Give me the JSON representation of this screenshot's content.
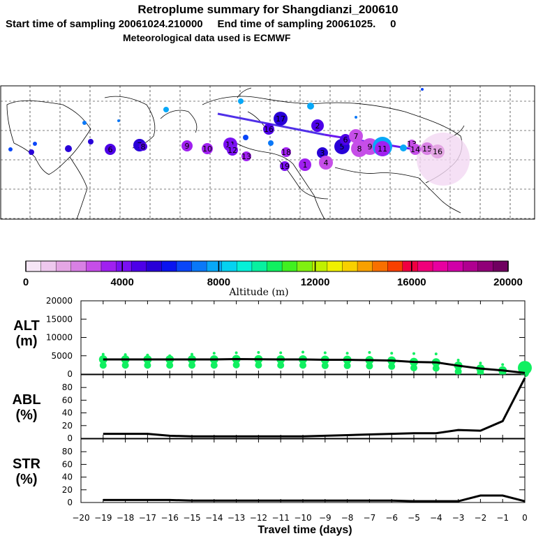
{
  "title": "Retroplume summary for Shangdianzi_200610",
  "subtitle": "Start time of sampling 20061024.210000     End time of sampling 20061025.     0",
  "met_data": "Meteorological data used is ECMWF",
  "colorbar": {
    "label": "Altitude (m)",
    "ticks": [
      "0",
      "4000",
      "8000",
      "12000",
      "16000",
      "20000"
    ],
    "colors": [
      "#f6e6f6",
      "#eec8ee",
      "#e4a6e4",
      "#d880e4",
      "#c64ee8",
      "#a020f0",
      "#7a10f2",
      "#4d00e8",
      "#2800d8",
      "#0a14f0",
      "#0a46f8",
      "#0a78f8",
      "#08a8f8",
      "#06d2f0",
      "#06f0d8",
      "#08f0a0",
      "#10f060",
      "#40f020",
      "#80f010",
      "#c0f000",
      "#f0f000",
      "#f8d000",
      "#f8a000",
      "#f87000",
      "#f84000",
      "#f00040",
      "#f0007a",
      "#e800a0",
      "#d000a8",
      "#b00090",
      "#900078",
      "#700060"
    ]
  },
  "map": {
    "plume_labels": [
      "1",
      "2",
      "3",
      "4",
      "5",
      "6",
      "7",
      "8",
      "9",
      "10",
      "11",
      "12",
      "13",
      "14",
      "15",
      "16",
      "17",
      "18",
      "19"
    ]
  },
  "chart_data": [
    {
      "type": "line",
      "name": "ALT",
      "ylabel": "ALT\n(m)",
      "ylim": [
        0,
        20000
      ],
      "yticks": [
        0,
        5000,
        10000,
        15000,
        20000
      ],
      "x": [
        -19,
        -18,
        -17,
        -16,
        -15,
        -14,
        -13,
        -12,
        -11,
        -10,
        -9,
        -8,
        -7,
        -6,
        -5,
        -4,
        -3,
        -2,
        -1,
        0
      ],
      "series": [
        {
          "name": "mean altitude",
          "values": [
            4000,
            4000,
            4000,
            4000,
            4000,
            4000,
            4100,
            4050,
            4000,
            4000,
            3900,
            3900,
            3800,
            3700,
            3300,
            3200,
            2300,
            1500,
            1000,
            300
          ]
        },
        {
          "name": "cluster altitudes (green)",
          "values": [
            4200,
            4100,
            4000,
            3800,
            4200,
            4500,
            4600,
            4700,
            4600,
            4800,
            4600,
            4500,
            4700,
            4500,
            4400,
            4300,
            2600,
            1800,
            1400,
            1700
          ]
        }
      ]
    },
    {
      "type": "line",
      "name": "ABL",
      "ylabel": "ABL\n(%)",
      "ylim": [
        0,
        100
      ],
      "yticks": [
        0,
        20,
        40,
        60,
        80
      ],
      "x": [
        -19,
        -18,
        -17,
        -16,
        -15,
        -14,
        -13,
        -12,
        -11,
        -10,
        -9,
        -8,
        -7,
        -6,
        -5,
        -4,
        -3,
        -2,
        -1,
        0
      ],
      "values": [
        7,
        7,
        7,
        4,
        3,
        3,
        3,
        3,
        3,
        3,
        4,
        5,
        6,
        7,
        8,
        8,
        13,
        12,
        27,
        95
      ]
    },
    {
      "type": "line",
      "name": "STR",
      "ylabel": "STR\n(%)",
      "ylim": [
        0,
        100
      ],
      "yticks": [
        0,
        20,
        40,
        60,
        80
      ],
      "xlabel": "Travel time (days)",
      "xticks": [
        -20,
        -19,
        -18,
        -17,
        -16,
        -15,
        -14,
        -13,
        -12,
        -11,
        -10,
        -9,
        -8,
        -7,
        -6,
        -5,
        -4,
        -3,
        -2,
        -1,
        0
      ],
      "xticklabels": [
        "−20",
        "−19",
        "−18",
        "−17",
        "−16",
        "−15",
        "−14",
        "−13",
        "−12",
        "−11",
        "−10",
        "−9",
        "−8",
        "−7",
        "−6",
        "−5",
        "−4",
        "−3",
        "−2",
        "−1",
        "0"
      ],
      "x": [
        -19,
        -18,
        -17,
        -16,
        -15,
        -14,
        -13,
        -12,
        -11,
        -10,
        -9,
        -8,
        -7,
        -6,
        -5,
        -4,
        -3,
        -2,
        -1,
        0
      ],
      "values": [
        4,
        4,
        4,
        4,
        3,
        3,
        3,
        3,
        3,
        3,
        3,
        3,
        3,
        3,
        2,
        2,
        2,
        11,
        11,
        2
      ]
    }
  ]
}
